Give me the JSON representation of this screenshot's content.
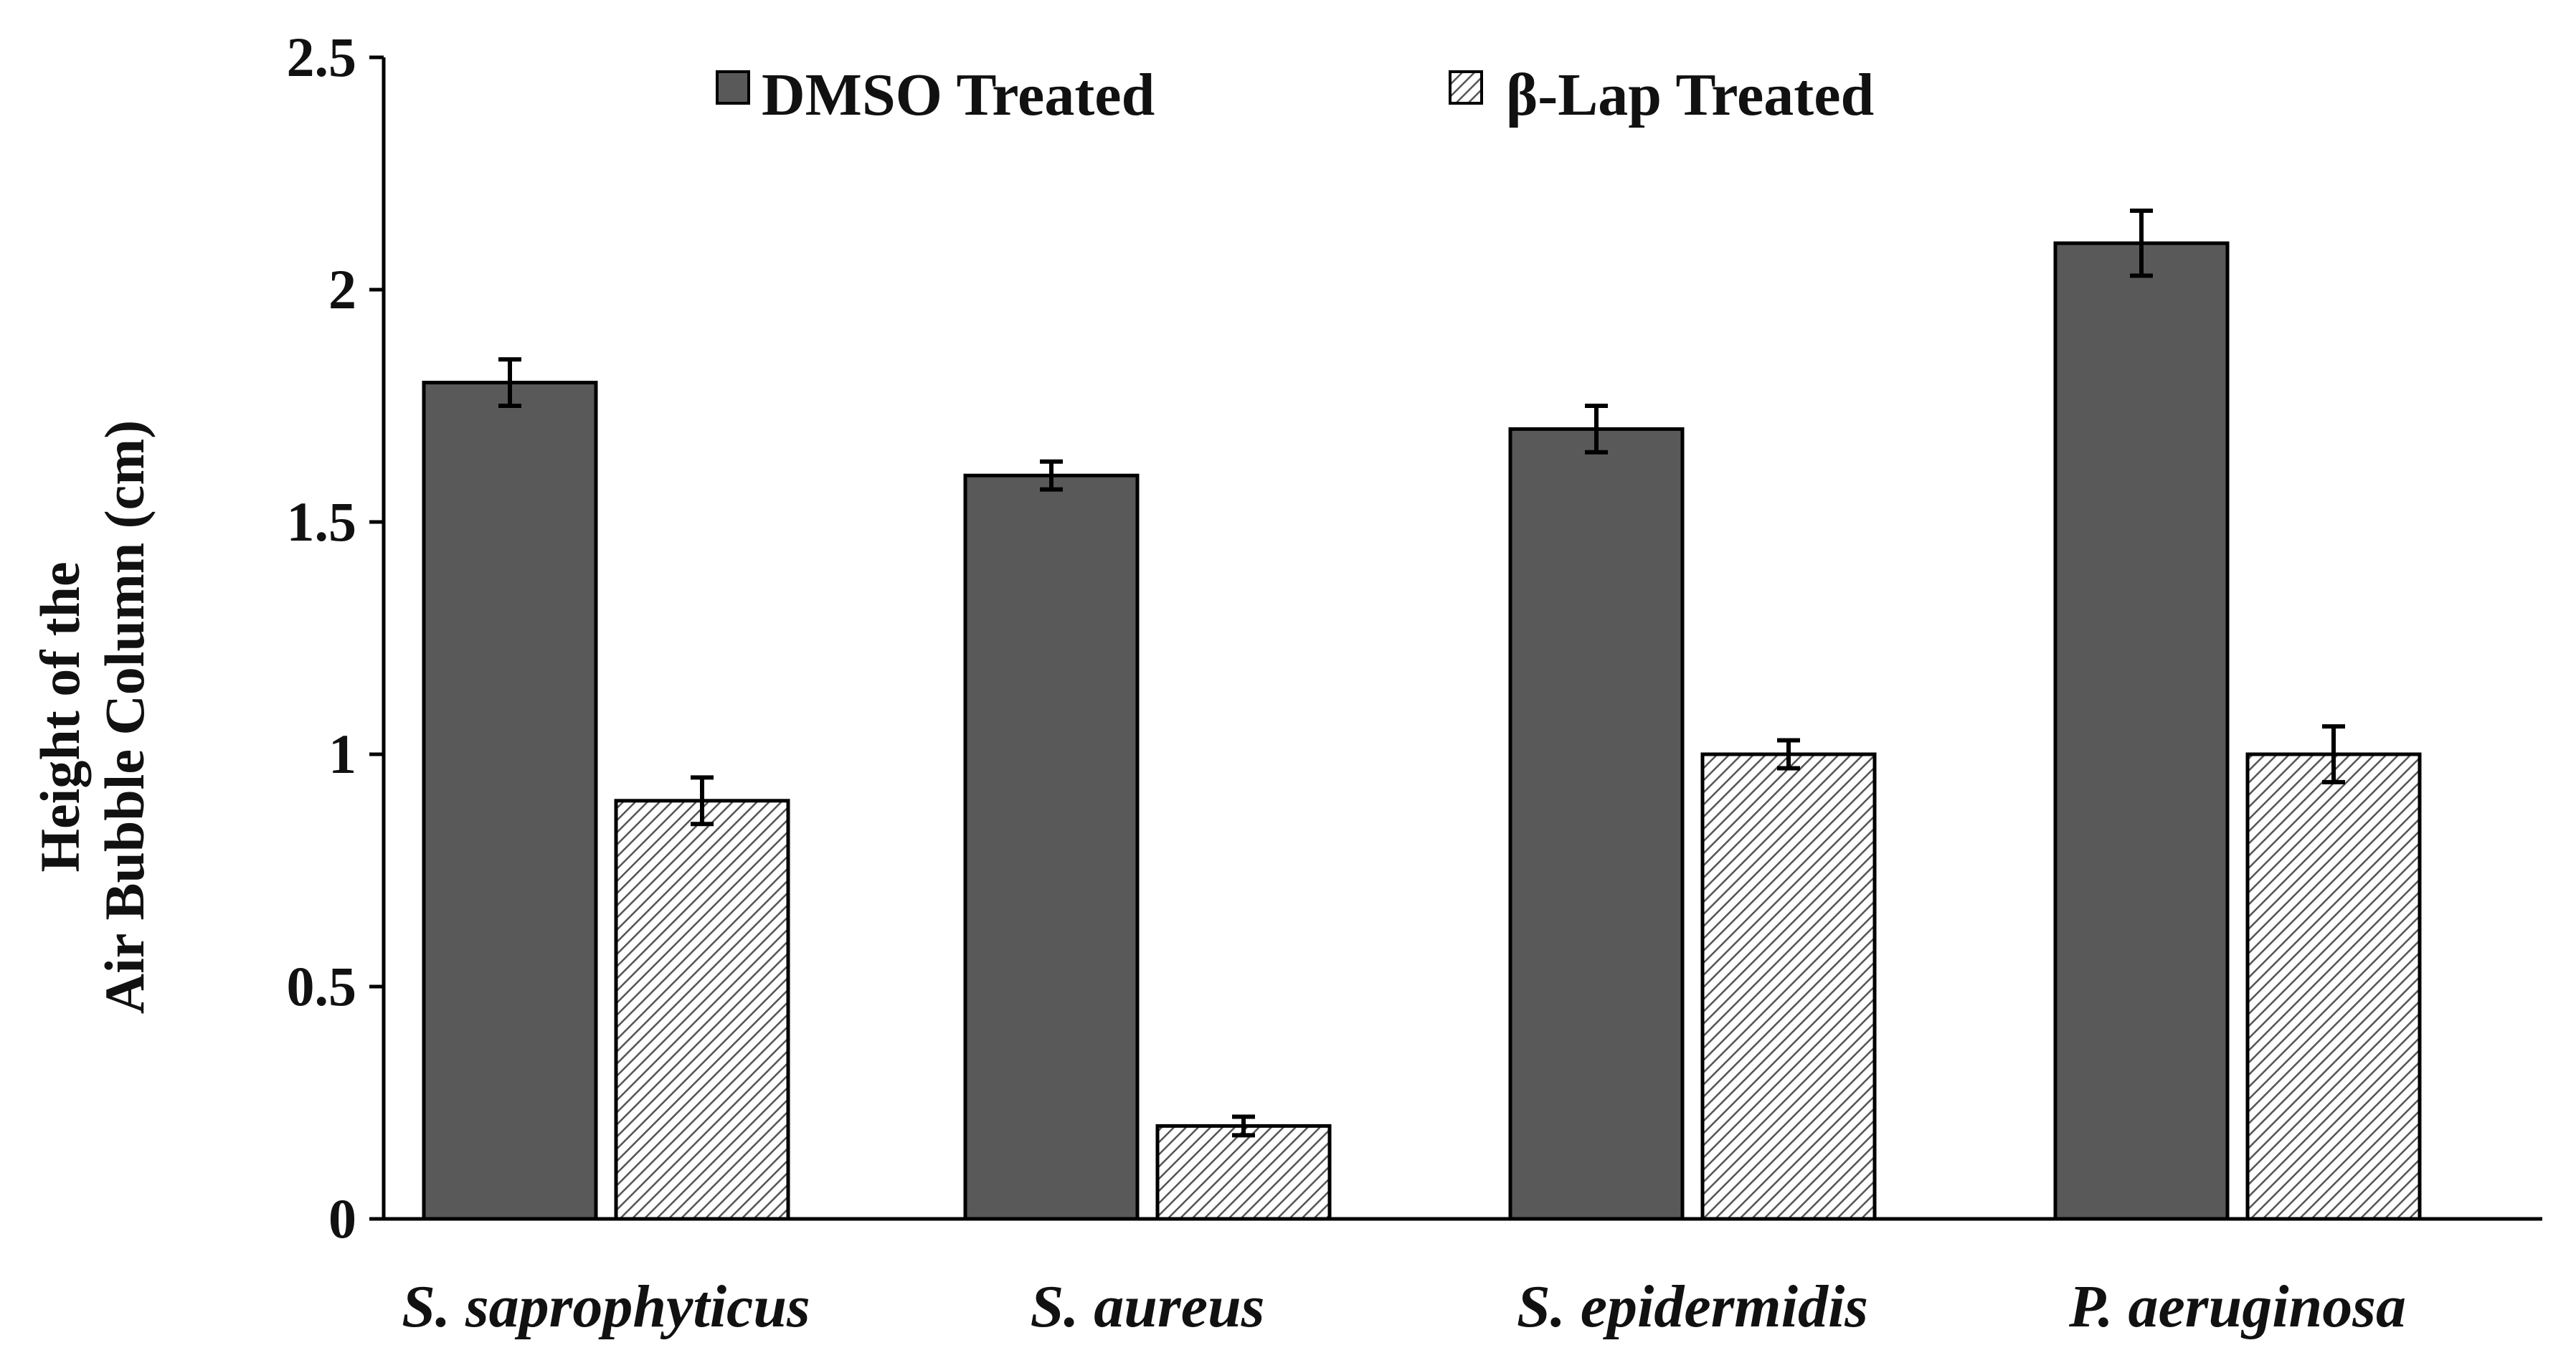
{
  "chart_data": {
    "type": "bar",
    "title": "",
    "xlabel": "",
    "ylabel_lines": [
      "Height of the",
      "Air Bubble Column (cm)"
    ],
    "ylim": [
      0,
      2.5
    ],
    "yticks": [
      "0",
      "0.5",
      "1",
      "1.5",
      "2",
      "2.5"
    ],
    "ytick_values": [
      0,
      0.5,
      1,
      1.5,
      2,
      2.5
    ],
    "grid": false,
    "legend_position": "top-center",
    "categories": [
      "S. saprophyticus",
      "S. aureus",
      "S. epidermidis",
      "P. aeruginosa"
    ],
    "series": [
      {
        "name": "DMSO Treated",
        "style": "solid",
        "color": "#595959",
        "values": [
          1.8,
          1.6,
          1.7,
          2.1
        ],
        "errors": [
          0.05,
          0.03,
          0.05,
          0.07
        ]
      },
      {
        "name": "β-Lap Treated",
        "style": "hatched",
        "color": "#ffffff",
        "values": [
          0.9,
          0.2,
          1.0,
          1.0
        ],
        "errors": [
          0.05,
          0.02,
          0.03,
          0.06
        ]
      }
    ]
  }
}
